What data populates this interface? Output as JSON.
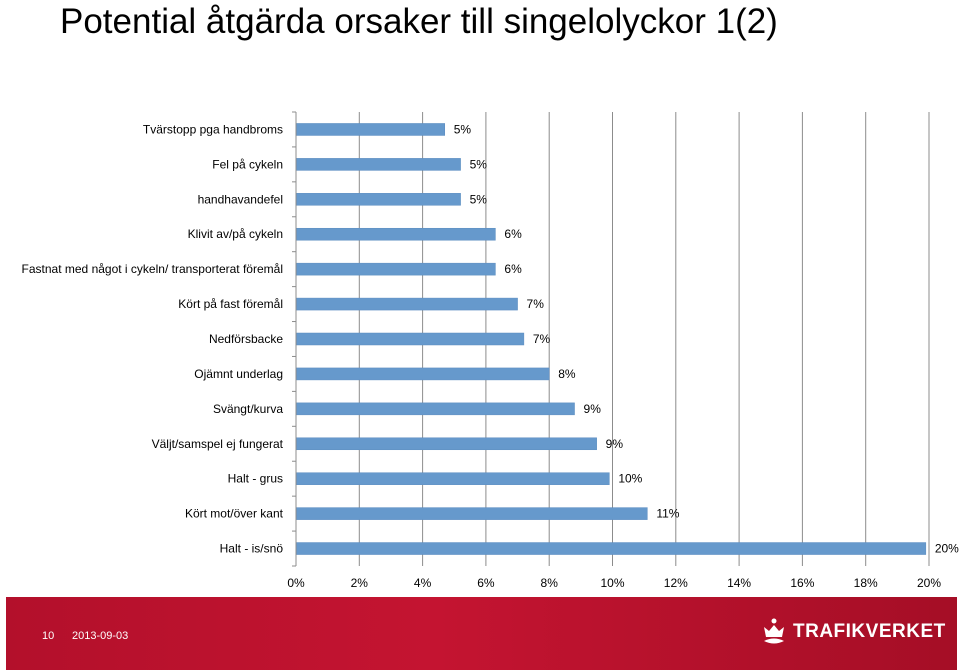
{
  "slide": {
    "title": "Potential åtgärda orsaker till singelolyckor 1(2)",
    "slide_number": "10",
    "date": "2013-09-03",
    "logo_text": "TRAFIKVERKET"
  },
  "colors": {
    "bar": "#6699cc",
    "bar_stroke": "#5b8cc0",
    "gridline": "#8c8c8c",
    "footer": "#c41431"
  },
  "chart_data": {
    "type": "bar",
    "orientation": "horizontal",
    "categories": [
      "Tvärstopp pga handbroms",
      "Fel på cykeln",
      "handhavandefel",
      "Klivit av/på cykeln",
      "Fastnat med något i cykeln/ transporterat föremål",
      "Kört på fast föremål",
      "Nedförsbacke",
      "Ojämnt underlag",
      "Svängt/kurva",
      "Väljt/samspel ej fungerat",
      "Halt - grus",
      "Kört mot/över kant",
      "Halt - is/snö"
    ],
    "values": [
      4.7,
      5.2,
      5.2,
      6.3,
      6.3,
      7.0,
      7.2,
      8.0,
      8.8,
      9.5,
      9.9,
      11.1,
      19.9
    ],
    "data_labels": [
      "5%",
      "5%",
      "5%",
      "6%",
      "6%",
      "7%",
      "7%",
      "8%",
      "9%",
      "9%",
      "10%",
      "11%",
      "20%"
    ],
    "xlim": [
      0,
      20
    ],
    "x_ticks": [
      0,
      2,
      4,
      6,
      8,
      10,
      12,
      14,
      16,
      18,
      20
    ],
    "x_tick_labels": [
      "0%",
      "2%",
      "4%",
      "6%",
      "8%",
      "10%",
      "12%",
      "14%",
      "16%",
      "18%",
      "20%"
    ],
    "grid": true,
    "legend": "none"
  }
}
